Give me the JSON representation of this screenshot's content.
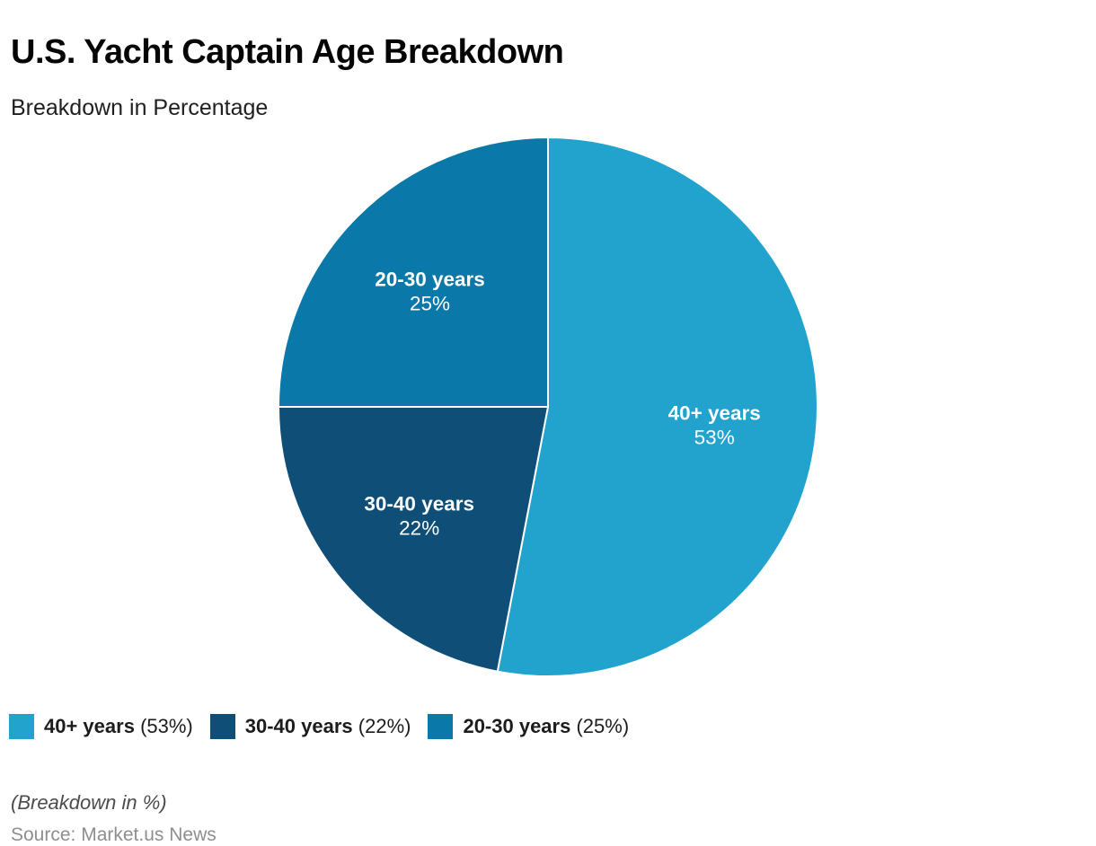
{
  "header": {
    "title": "U.S. Yacht Captain Age Breakdown",
    "subtitle": "Breakdown in Percentage"
  },
  "chart_data": {
    "type": "pie",
    "title": "U.S. Yacht Captain Age Breakdown",
    "unit": "%",
    "start_angle": "top",
    "direction": "clockwise",
    "legend_position": "bottom",
    "label_color": "#ffffff",
    "divider_color": "#ffffff",
    "slices": [
      {
        "label": "40+ years",
        "value": 53,
        "display": "53%",
        "color": "#21A3CE"
      },
      {
        "label": "30-40 years",
        "value": 22,
        "display": "22%",
        "color": "#0F4E76"
      },
      {
        "label": "20-30 years",
        "value": 25,
        "display": "25%",
        "color": "#0A78A8"
      }
    ]
  },
  "legend": {
    "items": [
      {
        "label": "40+ years",
        "value_label": "(53%)"
      },
      {
        "label": "30-40 years",
        "value_label": "(22%)"
      },
      {
        "label": "20-30 years",
        "value_label": "(25%)"
      }
    ]
  },
  "footer": {
    "note": "(Breakdown in %)",
    "source": "Source: Market.us News"
  }
}
